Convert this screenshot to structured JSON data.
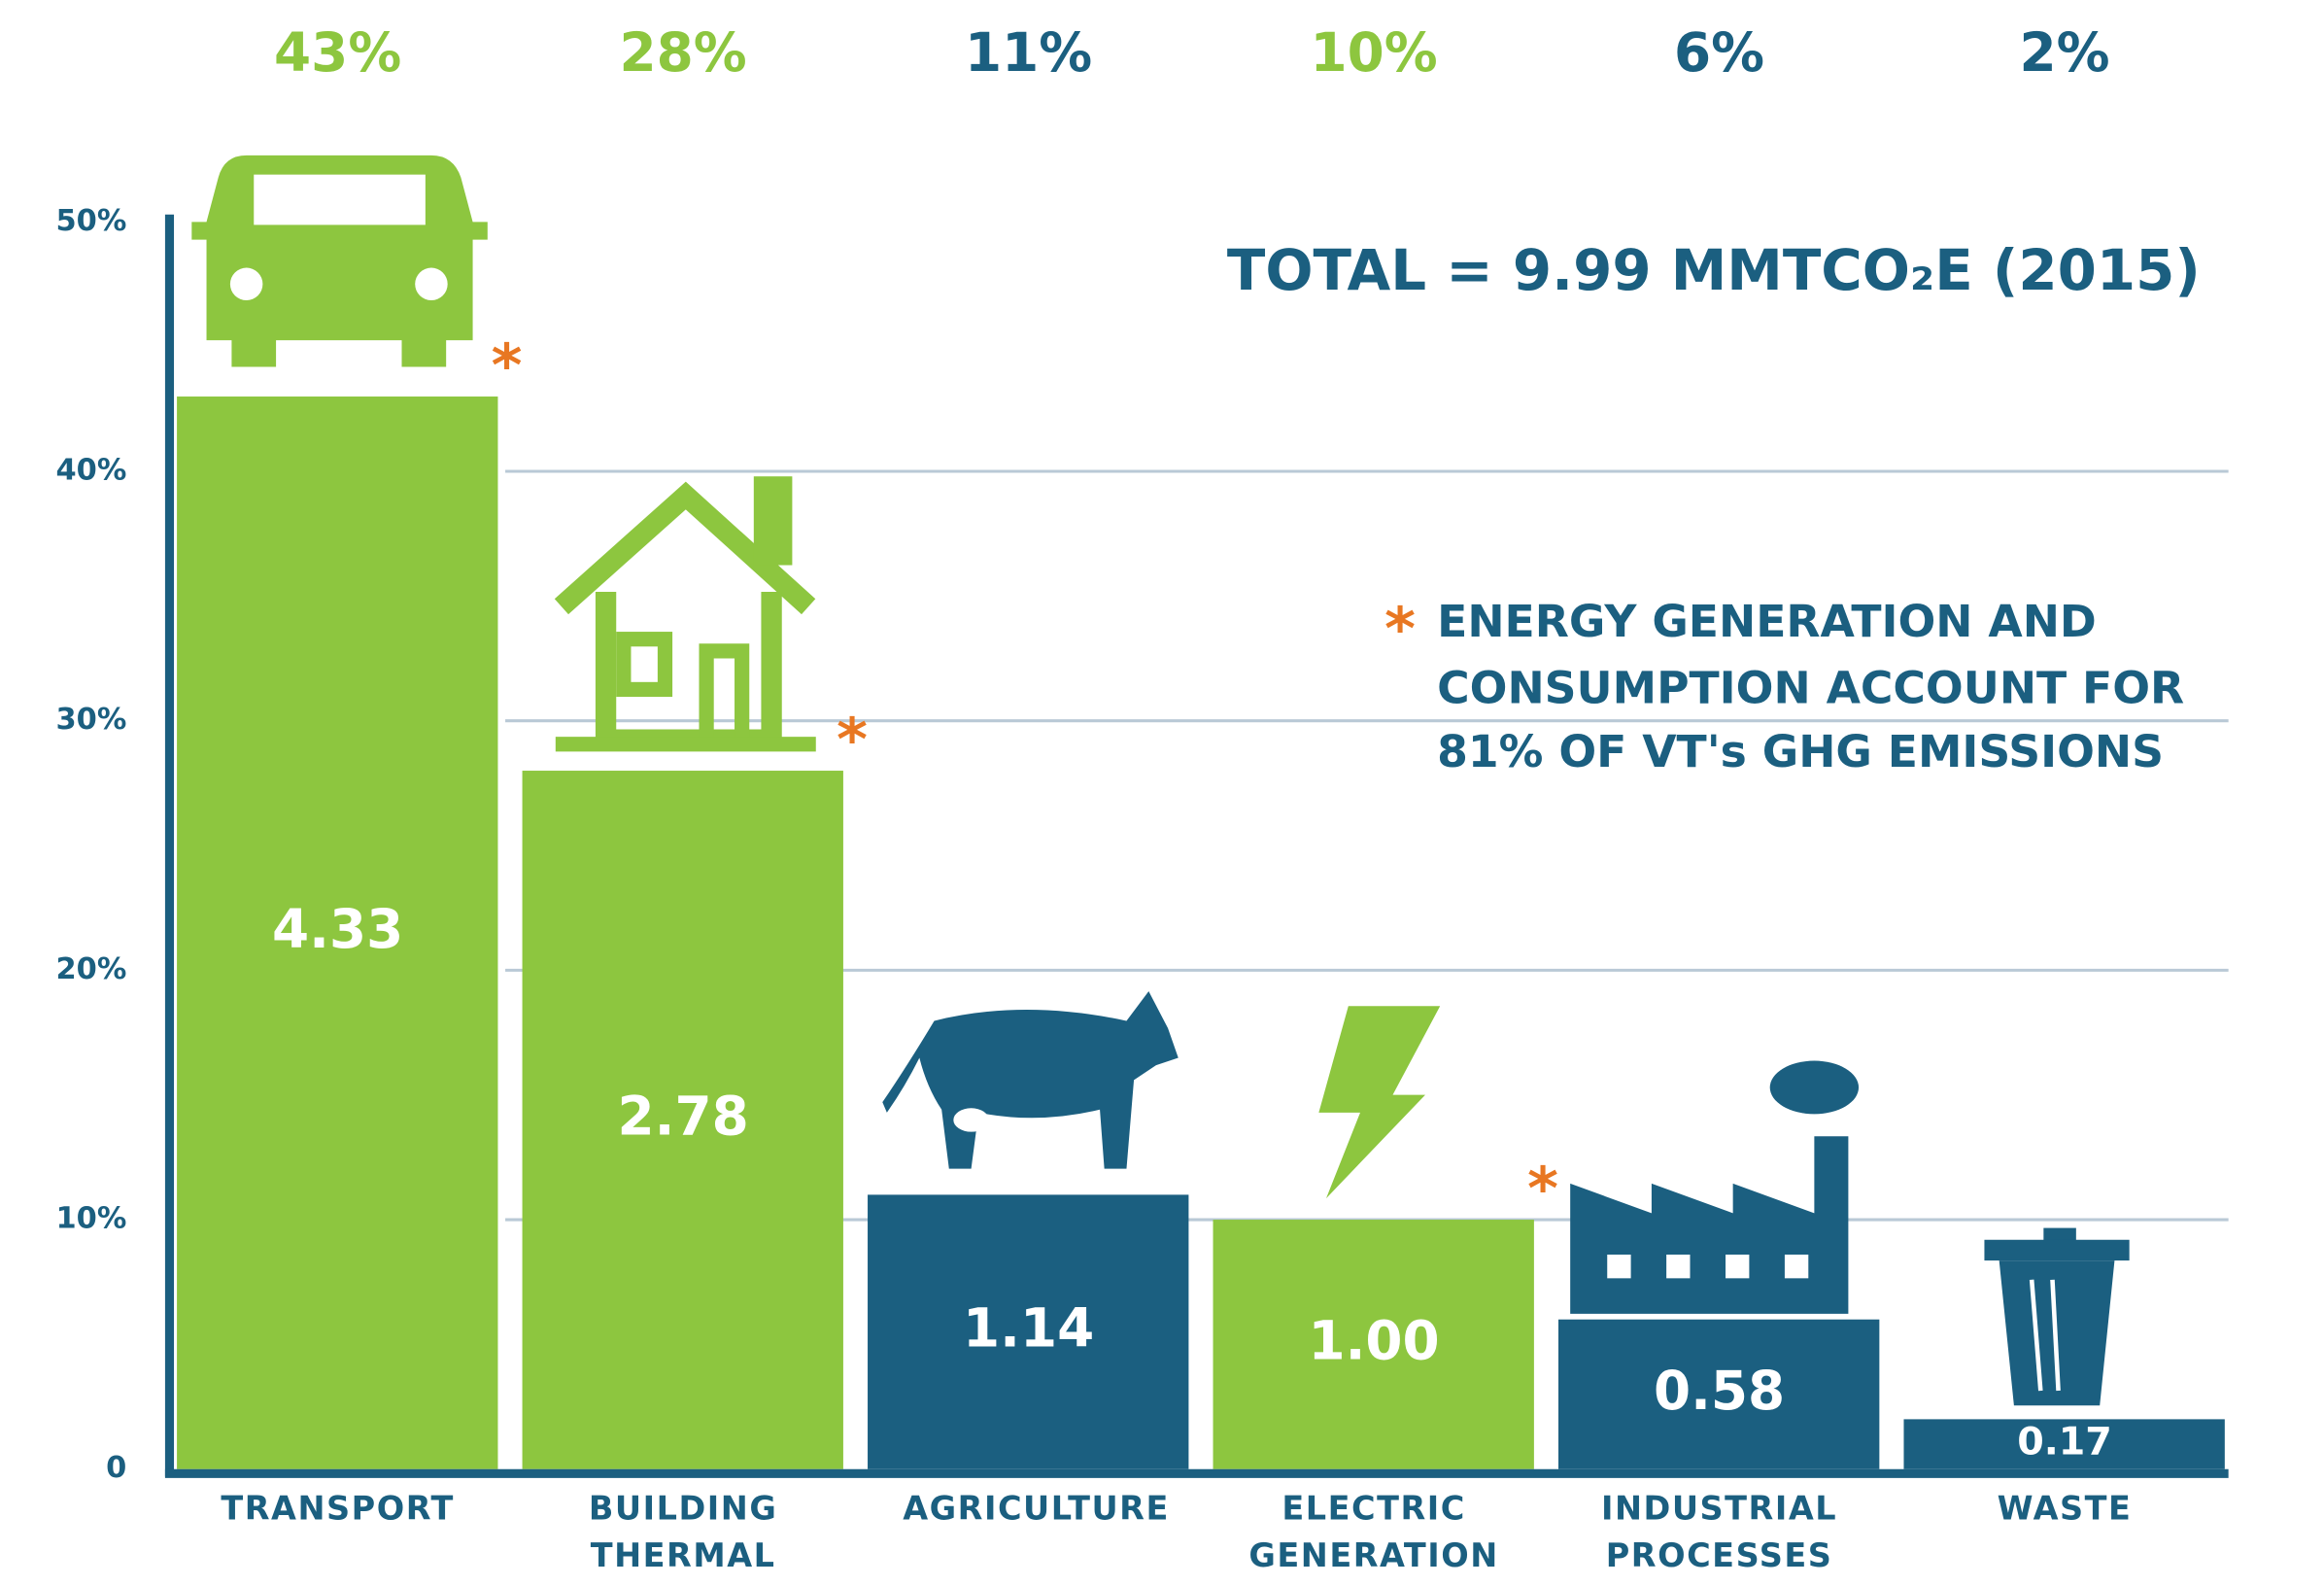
{
  "chart_data": {
    "type": "bar",
    "title": "TOTAL = 9.99 MMTCO₂E (2015)",
    "categories": [
      "TRANSPORT",
      "BUILDING THERMAL",
      "AGRICULTURE",
      "ELECTRIC GENERATION",
      "INDUSTRIAL PROCESSES",
      "WASTE"
    ],
    "values": [
      43,
      28,
      11,
      10,
      6,
      2
    ],
    "value_labels": [
      "43%",
      "28%",
      "11%",
      "10%",
      "6%",
      "2%"
    ],
    "emission_labels": [
      "4.33",
      "2.78",
      "1.14",
      "1.00",
      "0.58",
      "0.17"
    ],
    "colors": [
      "#8dc63f",
      "#8dc63f",
      "#1b5f80",
      "#8dc63f",
      "#1b5f80",
      "#1b5f80"
    ],
    "starred": [
      true,
      true,
      false,
      true,
      false,
      false
    ],
    "note": {
      "marker": "*",
      "lines": [
        "ENERGY GENERATION AND",
        "CONSUMPTION ACCOUNT FOR",
        "81% OF VT's GHG EMISSIONS"
      ]
    },
    "ylim": [
      0,
      50
    ],
    "yticks": [
      0,
      {
        "value": 10,
        "label": "10%"
      },
      {
        "value": 20,
        "label": "20%"
      },
      {
        "value": 30,
        "label": "30%"
      },
      {
        "value": 40,
        "label": "40%"
      },
      {
        "value": 50,
        "label": "50%"
      }
    ],
    "grid": true
  }
}
